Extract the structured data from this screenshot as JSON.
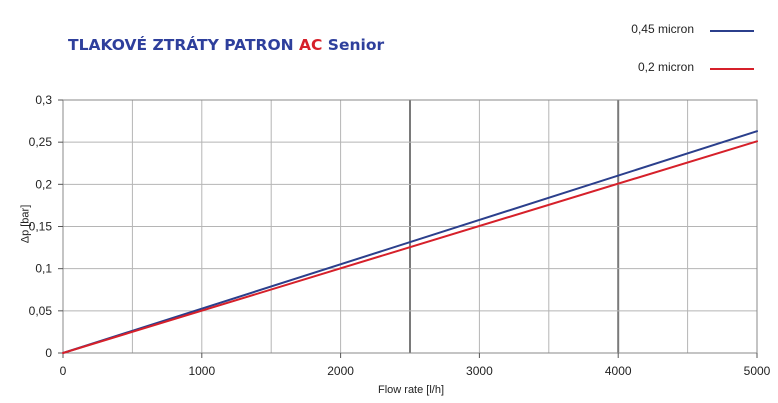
{
  "header": {
    "title_part1": "TLAKOVÉ ZTRÁTY PATRON ",
    "title_accent": "AC",
    "title_part2": " Senior"
  },
  "chart_data": {
    "type": "line",
    "xlabel": "Flow rate [l/h]",
    "ylabel": "Δp [bar]",
    "xlim": [
      0,
      5000
    ],
    "ylim": [
      0,
      0.3
    ],
    "x_ticks": [
      "0",
      "1000",
      "2000",
      "3000",
      "4000",
      "5000"
    ],
    "y_ticks": [
      "0",
      "0,05",
      "0,1",
      "0,15",
      "0,2",
      "0,25",
      "0,3"
    ],
    "grid": true,
    "legend_position": "top-right",
    "series": [
      {
        "name": "0,45 micron",
        "color": "#2b3f8c",
        "x": [
          0,
          5000
        ],
        "y": [
          0,
          0.263
        ]
      },
      {
        "name": "0,2 micron",
        "color": "#d6202a",
        "x": [
          0,
          5000
        ],
        "y": [
          0,
          0.251
        ]
      }
    ]
  }
}
